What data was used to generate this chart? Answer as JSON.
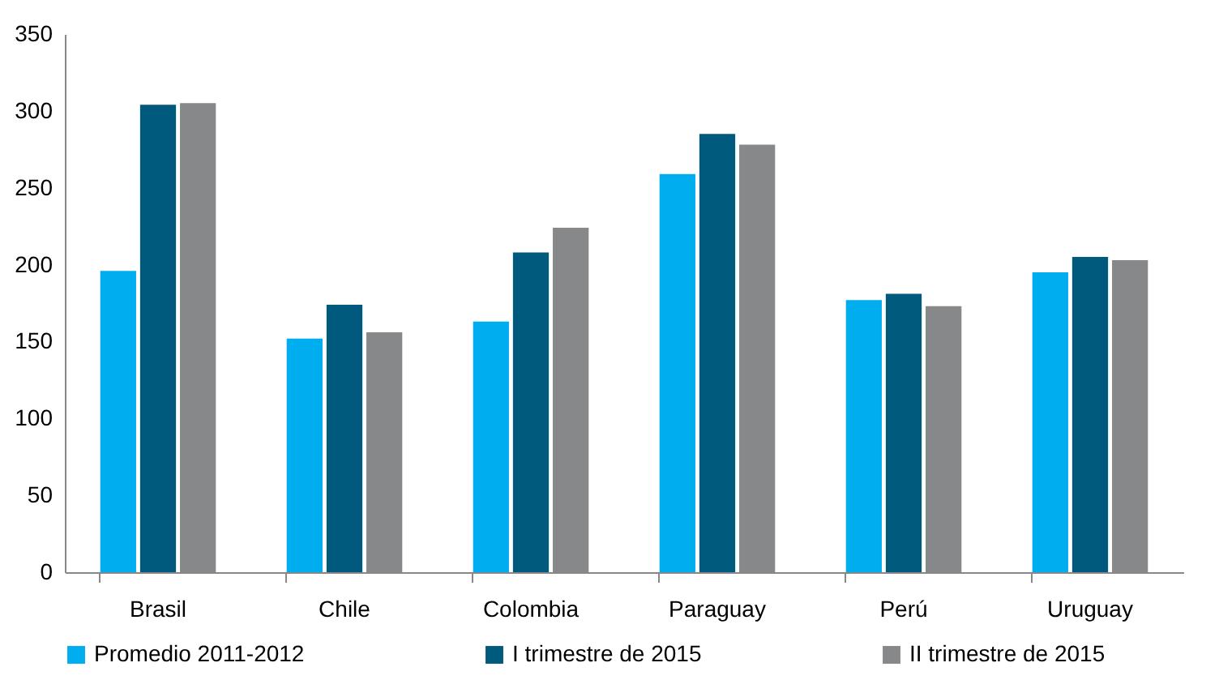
{
  "chart_data": {
    "type": "bar",
    "categories": [
      "Brasil",
      "Chile",
      "Colombia",
      "Paraguay",
      "Perú",
      "Uruguay"
    ],
    "series": [
      {
        "name": "Promedio 2011-2012",
        "color": "#00aeef",
        "values": [
          196,
          152,
          163,
          259,
          177,
          195
        ]
      },
      {
        "name": "I trimestre de 2015",
        "color": "#005a7e",
        "values": [
          304,
          174,
          208,
          285,
          181,
          205
        ]
      },
      {
        "name": "II trimestre de 2015",
        "color": "#87888a",
        "values": [
          305,
          156,
          224,
          278,
          173,
          203
        ]
      }
    ],
    "ylim": [
      0,
      350
    ],
    "yticks": [
      0,
      50,
      100,
      150,
      200,
      250,
      300,
      350
    ],
    "grid": false,
    "legend": "bottom"
  }
}
